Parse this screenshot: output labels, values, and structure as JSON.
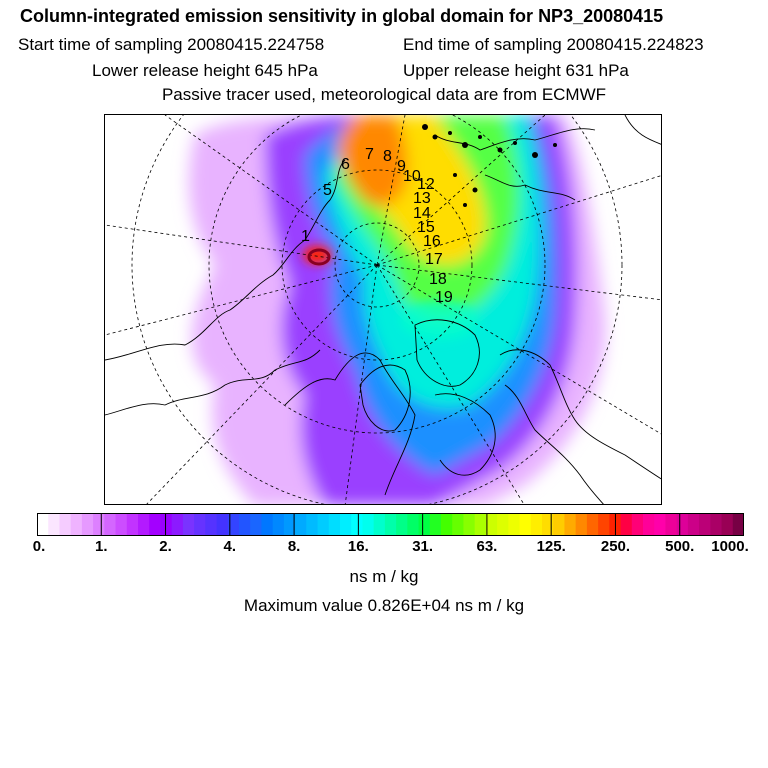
{
  "header": {
    "title": "Column-integrated emission sensitivity in global domain for NP3_20080415",
    "start_time": "Start time of sampling 20080415.224758",
    "end_time": "End time of sampling 20080415.224823",
    "lower_height": "Lower release height  645 hPa",
    "upper_height": "Upper release height  631 hPa",
    "tracer_note": "Passive tracer used, meteorological data are from ECMWF"
  },
  "colorbar": {
    "ticks": [
      "0.",
      "1.",
      "2.",
      "4.",
      "8.",
      "16.",
      "31.",
      "63.",
      "125.",
      "250.",
      "500.",
      "1000."
    ],
    "colors": [
      "#ffffff",
      "#fbe6ff",
      "#f5ccff",
      "#efb3ff",
      "#e699ff",
      "#dd80ff",
      "#d466ff",
      "#cc4dff",
      "#c233ff",
      "#b31aff",
      "#a300ff",
      "#9900ff",
      "#8c1aff",
      "#7a33ff",
      "#6633ff",
      "#5533ff",
      "#4433ff",
      "#3344ff",
      "#2255ff",
      "#1a66ff",
      "#0077ff",
      "#0088ff",
      "#0099ff",
      "#00aaff",
      "#00bbff",
      "#00ccff",
      "#00ddff",
      "#00eeff",
      "#00ffff",
      "#00ffee",
      "#00ffcc",
      "#00ffaa",
      "#00ff88",
      "#00ff66",
      "#00ff44",
      "#22ff22",
      "#44ff00",
      "#66ff00",
      "#88ff00",
      "#aaff00",
      "#ccff00",
      "#ddff00",
      "#eeff00",
      "#ffff00",
      "#ffee00",
      "#ffdd00",
      "#ffcc00",
      "#ffaa00",
      "#ff8800",
      "#ff6600",
      "#ff4400",
      "#ff2200",
      "#ff0044",
      "#ff0077",
      "#ff0099",
      "#ff00aa",
      "#ee0099",
      "#dd0099",
      "#cc0088",
      "#bb0077",
      "#aa0066",
      "#990055",
      "#770044"
    ],
    "unit": "ns m / kg",
    "max_value": "Maximum value  0.826E+04 ns m / kg"
  },
  "map": {
    "trajectory_labels": [
      "5",
      "6",
      "7",
      "8",
      "9",
      "10",
      "12",
      "13",
      "14",
      "15",
      "16",
      "17",
      "18",
      "19",
      "1"
    ]
  }
}
